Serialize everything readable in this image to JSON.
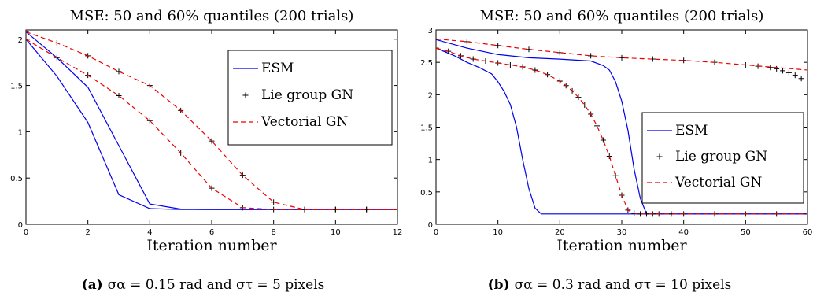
{
  "chart_data": [
    {
      "type": "line",
      "title": "MSE: 50 and 60% quantiles (200 trials)",
      "xlabel": "Iteration number",
      "ylabel": "",
      "xlim": [
        0,
        12
      ],
      "ylim": [
        0,
        2.1
      ],
      "xticks": [
        "0",
        "2",
        "4",
        "6",
        "8",
        "10",
        "12"
      ],
      "yticks": [
        "0",
        "0.5",
        "1",
        "1.5",
        "2"
      ],
      "legend": {
        "placement": "top-right",
        "entries": [
          "ESM",
          "Lie group GN",
          "Vectorial GN"
        ]
      },
      "caption": {
        "label": "(a)",
        "text": "σα = 0.15 rad and στ = 5 pixels"
      },
      "series": [
        {
          "name": "ESM",
          "style": "solid",
          "color": "#0000ee",
          "x": [
            0,
            1,
            2,
            3,
            4,
            5,
            6,
            7,
            8,
            9,
            10,
            11,
            12
          ],
          "y": [
            2.0,
            1.6,
            1.1,
            0.32,
            0.17,
            0.16,
            0.16,
            0.16,
            0.16,
            0.16,
            0.16,
            0.16,
            0.16
          ]
        },
        {
          "name": "ESM",
          "style": "solid",
          "color": "#0000ee",
          "x": [
            0,
            1,
            2,
            3,
            4,
            5,
            6,
            7,
            8,
            9,
            10,
            11,
            12
          ],
          "y": [
            2.08,
            1.8,
            1.48,
            0.85,
            0.22,
            0.165,
            0.16,
            0.16,
            0.16,
            0.16,
            0.16,
            0.16,
            0.16
          ]
        },
        {
          "name": "Lie group GN",
          "style": "plus",
          "color": "#000000",
          "x": [
            0,
            1,
            2,
            3,
            4,
            5,
            6,
            7,
            8,
            9,
            10,
            11,
            12
          ],
          "y": [
            2.0,
            1.8,
            1.61,
            1.39,
            1.12,
            0.77,
            0.39,
            0.18,
            0.16,
            0.16,
            0.16,
            0.16,
            0.16
          ]
        },
        {
          "name": "Lie group GN",
          "style": "plus",
          "color": "#000000",
          "x": [
            0,
            1,
            2,
            3,
            4,
            5,
            6,
            7,
            8,
            9,
            10,
            11,
            12
          ],
          "y": [
            2.08,
            1.96,
            1.82,
            1.65,
            1.5,
            1.23,
            0.9,
            0.53,
            0.24,
            0.16,
            0.16,
            0.16,
            0.16
          ]
        },
        {
          "name": "Vectorial GN",
          "style": "dashed",
          "color": "#ee0000",
          "x": [
            0,
            1,
            2,
            3,
            4,
            5,
            6,
            7,
            8,
            9,
            10,
            11,
            12
          ],
          "y": [
            2.0,
            1.8,
            1.61,
            1.39,
            1.12,
            0.77,
            0.39,
            0.18,
            0.16,
            0.16,
            0.16,
            0.16,
            0.16
          ]
        },
        {
          "name": "Vectorial GN",
          "style": "dashed",
          "color": "#ee0000",
          "x": [
            0,
            1,
            2,
            3,
            4,
            5,
            6,
            7,
            8,
            9,
            10,
            11,
            12
          ],
          "y": [
            2.08,
            1.96,
            1.82,
            1.65,
            1.5,
            1.23,
            0.9,
            0.53,
            0.24,
            0.16,
            0.16,
            0.16,
            0.16
          ]
        }
      ]
    },
    {
      "type": "line",
      "title": "MSE: 50 and 60% quantiles (200 trials)",
      "xlabel": "Iteration number",
      "ylabel": "",
      "xlim": [
        0,
        60
      ],
      "ylim": [
        0,
        3
      ],
      "xticks": [
        "0",
        "10",
        "20",
        "30",
        "40",
        "50",
        "60"
      ],
      "yticks": [
        "0",
        "0.5",
        "1",
        "1.5",
        "2",
        "2.5",
        "3"
      ],
      "legend": {
        "placement": "center-right",
        "entries": [
          "ESM",
          "Lie group GN",
          "Vectorial GN"
        ]
      },
      "caption": {
        "label": "(b)",
        "text": "σα = 0.3 rad and στ = 10 pixels"
      },
      "series": [
        {
          "name": "ESM",
          "style": "solid",
          "color": "#0000ee",
          "x": [
            0,
            3,
            5,
            7,
            9,
            10,
            11,
            12,
            13,
            14,
            15,
            16,
            17,
            18,
            20,
            30,
            40,
            50,
            60
          ],
          "y": [
            2.72,
            2.6,
            2.5,
            2.42,
            2.32,
            2.2,
            2.05,
            1.85,
            1.5,
            1.0,
            0.55,
            0.25,
            0.16,
            0.16,
            0.16,
            0.16,
            0.16,
            0.16,
            0.16
          ]
        },
        {
          "name": "ESM",
          "style": "solid",
          "color": "#0000ee",
          "x": [
            0,
            5,
            10,
            15,
            20,
            25,
            27,
            28,
            29,
            30,
            31,
            32,
            33,
            34,
            35,
            40,
            50,
            60
          ],
          "y": [
            2.85,
            2.72,
            2.62,
            2.57,
            2.55,
            2.52,
            2.45,
            2.38,
            2.2,
            1.9,
            1.45,
            0.85,
            0.4,
            0.16,
            0.16,
            0.16,
            0.16,
            0.16
          ]
        },
        {
          "name": "Lie group GN",
          "style": "plus",
          "color": "#000000",
          "x": [
            0,
            2,
            4,
            6,
            8,
            10,
            12,
            14,
            16,
            18,
            20,
            21,
            22,
            23,
            24,
            25,
            26,
            27,
            28,
            29,
            30,
            31,
            32,
            33,
            34,
            35,
            36,
            38,
            40,
            45,
            50,
            55,
            60
          ],
          "y": [
            2.72,
            2.67,
            2.6,
            2.55,
            2.52,
            2.49,
            2.46,
            2.43,
            2.38,
            2.31,
            2.21,
            2.14,
            2.06,
            1.96,
            1.84,
            1.7,
            1.52,
            1.3,
            1.05,
            0.75,
            0.45,
            0.22,
            0.17,
            0.16,
            0.16,
            0.16,
            0.16,
            0.16,
            0.16,
            0.16,
            0.16,
            0.16,
            0.16
          ]
        },
        {
          "name": "Lie group GN",
          "style": "plus",
          "color": "#000000",
          "x": [
            0,
            5,
            10,
            15,
            20,
            25,
            30,
            35,
            40,
            45,
            50,
            52,
            54,
            55,
            56,
            57,
            58,
            59
          ],
          "y": [
            2.86,
            2.82,
            2.76,
            2.7,
            2.65,
            2.6,
            2.57,
            2.55,
            2.53,
            2.5,
            2.46,
            2.44,
            2.42,
            2.4,
            2.37,
            2.34,
            2.3,
            2.25
          ]
        },
        {
          "name": "Vectorial GN",
          "style": "dashed",
          "color": "#ee0000",
          "x": [
            0,
            2,
            4,
            6,
            8,
            10,
            12,
            14,
            16,
            18,
            20,
            21,
            22,
            23,
            24,
            25,
            26,
            27,
            28,
            29,
            30,
            31,
            32,
            33,
            34,
            35,
            36,
            38,
            40,
            45,
            50,
            55,
            60
          ],
          "y": [
            2.72,
            2.67,
            2.6,
            2.55,
            2.52,
            2.49,
            2.46,
            2.43,
            2.38,
            2.31,
            2.21,
            2.14,
            2.06,
            1.96,
            1.84,
            1.7,
            1.52,
            1.3,
            1.05,
            0.75,
            0.45,
            0.22,
            0.17,
            0.16,
            0.16,
            0.16,
            0.16,
            0.16,
            0.16,
            0.16,
            0.16,
            0.16,
            0.16
          ]
        },
        {
          "name": "Vectorial GN",
          "style": "dashed",
          "color": "#ee0000",
          "x": [
            0,
            5,
            10,
            15,
            20,
            25,
            30,
            35,
            40,
            45,
            50,
            55,
            60
          ],
          "y": [
            2.86,
            2.82,
            2.76,
            2.7,
            2.65,
            2.6,
            2.57,
            2.55,
            2.53,
            2.5,
            2.46,
            2.42,
            2.38
          ]
        }
      ]
    }
  ]
}
